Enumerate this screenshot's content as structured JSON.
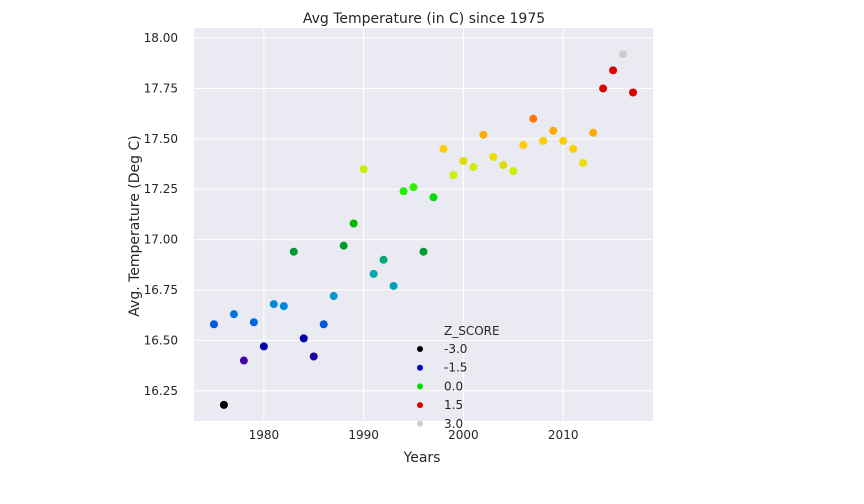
{
  "chart_data": {
    "type": "scatter",
    "title": "Avg Temperature (in C) since 1975",
    "xlabel": "Years",
    "ylabel": "Avg. Temperature (Deg C)",
    "xlim": [
      1973,
      2019
    ],
    "ylim": [
      16.1,
      18.05
    ],
    "xticks": [
      "1980",
      "1990",
      "2000",
      "2010"
    ],
    "xtick_values": [
      1980,
      1990,
      2000,
      2010
    ],
    "yticks": [
      "16.25",
      "16.50",
      "16.75",
      "17.00",
      "17.25",
      "17.50",
      "17.75",
      "18.00"
    ],
    "ytick_values": [
      16.25,
      16.5,
      16.75,
      17.0,
      17.25,
      17.5,
      17.75,
      18.0
    ],
    "grid": true,
    "background": "#eaeaf2",
    "color_scale": "nipy_spectral",
    "legend": {
      "title": "Z_SCORE",
      "placement": "lower-center",
      "entries": [
        {
          "label": "-3.0",
          "color": "#000000"
        },
        {
          "label": "-1.5",
          "color": "#0000bb"
        },
        {
          "label": "0.0",
          "color": "#00dd00"
        },
        {
          "label": "1.5",
          "color": "#dd0000"
        },
        {
          "label": "3.0",
          "color": "#cccccc"
        }
      ]
    },
    "points": [
      {
        "x": 1975,
        "y": 16.58,
        "color": "#0055dd"
      },
      {
        "x": 1976,
        "y": 16.18,
        "color": "#000000"
      },
      {
        "x": 1977,
        "y": 16.63,
        "color": "#0077dd"
      },
      {
        "x": 1978,
        "y": 16.4,
        "color": "#4400aa"
      },
      {
        "x": 1979,
        "y": 16.59,
        "color": "#0066dd"
      },
      {
        "x": 1980,
        "y": 16.47,
        "color": "#0000aa"
      },
      {
        "x": 1981,
        "y": 16.68,
        "color": "#0088dd"
      },
      {
        "x": 1982,
        "y": 16.67,
        "color": "#0088dd"
      },
      {
        "x": 1983,
        "y": 16.94,
        "color": "#009933"
      },
      {
        "x": 1984,
        "y": 16.51,
        "color": "#0000aa"
      },
      {
        "x": 1985,
        "y": 16.42,
        "color": "#2200aa"
      },
      {
        "x": 1986,
        "y": 16.58,
        "color": "#0055dd"
      },
      {
        "x": 1987,
        "y": 16.72,
        "color": "#0099cc"
      },
      {
        "x": 1988,
        "y": 16.97,
        "color": "#009922"
      },
      {
        "x": 1989,
        "y": 17.08,
        "color": "#00bb00"
      },
      {
        "x": 1990,
        "y": 17.35,
        "color": "#ccee00"
      },
      {
        "x": 1991,
        "y": 16.83,
        "color": "#00aaaa"
      },
      {
        "x": 1992,
        "y": 16.9,
        "color": "#00aa77"
      },
      {
        "x": 1993,
        "y": 16.77,
        "color": "#00a0bb"
      },
      {
        "x": 1994,
        "y": 17.24,
        "color": "#22ee00"
      },
      {
        "x": 1995,
        "y": 17.26,
        "color": "#33ee00"
      },
      {
        "x": 1996,
        "y": 16.94,
        "color": "#009933"
      },
      {
        "x": 1997,
        "y": 17.21,
        "color": "#00dd00"
      },
      {
        "x": 1998,
        "y": 17.45,
        "color": "#ffcc00"
      },
      {
        "x": 1999,
        "y": 17.32,
        "color": "#ccee00"
      },
      {
        "x": 2000,
        "y": 17.39,
        "color": "#dddd00"
      },
      {
        "x": 2001,
        "y": 17.36,
        "color": "#ccee00"
      },
      {
        "x": 2002,
        "y": 17.52,
        "color": "#ffaa00"
      },
      {
        "x": 2003,
        "y": 17.41,
        "color": "#eedd00"
      },
      {
        "x": 2004,
        "y": 17.37,
        "color": "#dddd00"
      },
      {
        "x": 2005,
        "y": 17.34,
        "color": "#ccee00"
      },
      {
        "x": 2006,
        "y": 17.47,
        "color": "#ffcc00"
      },
      {
        "x": 2007,
        "y": 17.6,
        "color": "#ff7700"
      },
      {
        "x": 2008,
        "y": 17.49,
        "color": "#ffcc00"
      },
      {
        "x": 2009,
        "y": 17.54,
        "color": "#ffaa00"
      },
      {
        "x": 2010,
        "y": 17.49,
        "color": "#ffcc00"
      },
      {
        "x": 2011,
        "y": 17.45,
        "color": "#ffcc00"
      },
      {
        "x": 2012,
        "y": 17.38,
        "color": "#eedd00"
      },
      {
        "x": 2013,
        "y": 17.53,
        "color": "#ffaa00"
      },
      {
        "x": 2014,
        "y": 17.75,
        "color": "#dd0000"
      },
      {
        "x": 2015,
        "y": 17.84,
        "color": "#dd0000"
      },
      {
        "x": 2016,
        "y": 17.92,
        "color": "#cccccc"
      },
      {
        "x": 2017,
        "y": 17.73,
        "color": "#dd0000"
      }
    ]
  }
}
